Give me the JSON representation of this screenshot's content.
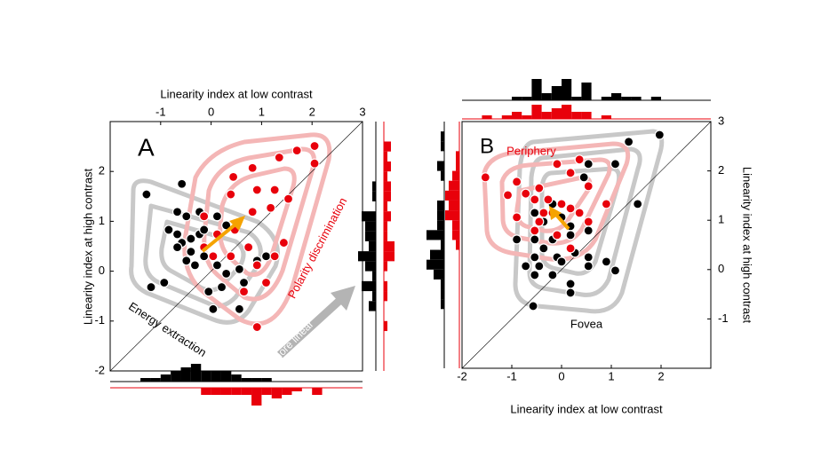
{
  "chart_data": [
    {
      "type": "scatter",
      "panel": "A",
      "x_label": "Linearity index at low contrast",
      "y_label": "Linearity index at high contrast",
      "xlim": [
        -2,
        3
      ],
      "ylim": [
        -2,
        3
      ],
      "xticks": [
        -1,
        0,
        1,
        2,
        3
      ],
      "yticks": [
        -2,
        -1,
        0,
        1,
        2
      ],
      "annotations": [
        "Energy extraction",
        "Polarity discrimination",
        "more linear"
      ],
      "series": [
        {
          "color": "#000000",
          "x": [
            -0.58,
            -1.28,
            -0.67,
            -0.49,
            -0.23,
            0.12,
            -0.84,
            -0.67,
            -0.4,
            -0.23,
            -0.58,
            -0.67,
            -0.4,
            -0.14,
            -0.49,
            -0.32,
            0.12,
            0.3,
            0.56,
            0.91,
            1.09,
            -0.93,
            -0.05,
            0.21,
            0.65,
            -1.19,
            0.04,
            0.56,
            -0.14,
            0.3
          ],
          "values": [
            1.75,
            1.54,
            1.19,
            1.1,
            1.19,
            1.1,
            0.83,
            0.74,
            0.65,
            0.74,
            0.57,
            0.48,
            0.39,
            0.3,
            0.21,
            0.12,
            0.12,
            -0.05,
            0.04,
            0.21,
            0.3,
            -0.23,
            -0.41,
            -0.32,
            -0.23,
            -0.32,
            -0.76,
            -0.76,
            0.83,
            0.92
          ]
        },
        {
          "color": "#e8000b",
          "x": [
            0.44,
            0.82,
            1.35,
            1.7,
            2.05,
            0.91,
            1.26,
            0.39,
            0.82,
            1.18,
            1.53,
            -0.14,
            0.12,
            0.47,
            0.74,
            -0.14,
            0.04,
            0.39,
            0.91,
            1.26,
            1.44,
            0.65,
            1.09,
            0.91,
            2.05
          ],
          "values": [
            1.89,
            2.07,
            2.28,
            2.42,
            2.51,
            1.63,
            1.63,
            1.54,
            1.19,
            1.27,
            1.45,
            1.1,
            0.74,
            0.83,
            0.48,
            0.48,
            0.3,
            0.3,
            0.12,
            0.3,
            0.57,
            -0.41,
            -0.23,
            -1.12,
            2.16
          ]
        }
      ]
    },
    {
      "type": "scatter",
      "panel": "B",
      "x_label": "Linearity index at low contrast",
      "y_label": "Linearity index at high contrast",
      "xlim": [
        -2,
        3
      ],
      "ylim": [
        -2,
        3
      ],
      "xticks": [
        -2,
        -1,
        0,
        1,
        2
      ],
      "yticks": [
        -1,
        0,
        1,
        2,
        3
      ],
      "annotations": [
        "Periphery",
        "Fovea"
      ],
      "series": [
        {
          "color": "#000000",
          "x": [
            1.97,
            1.35,
            0.54,
            0.45,
            1.08,
            -0.18,
            -0.54,
            -0.36,
            0,
            0.18,
            -0.54,
            -0.18,
            0.18,
            -0.36,
            -0.09,
            0.27,
            -0.54,
            -0.72,
            -0.45,
            0,
            0.54,
            0.9,
            -0.54,
            -0.18,
            0.18,
            0.54,
            1.08,
            1.53,
            -0.57,
            0.18,
            -0.9,
            0.54
          ],
          "values": [
            2.73,
            2.59,
            2.14,
            1.87,
            2.14,
            1.33,
            1.15,
            0.97,
            1.06,
            0.88,
            0.61,
            0.61,
            0.7,
            0.43,
            0.25,
            0.34,
            0.25,
            0.07,
            0.07,
            0.16,
            0.25,
            0.16,
            -0.11,
            -0.11,
            -0.29,
            0.07,
            -0.02,
            1.33,
            -0.74,
            -0.47,
            0.61,
            0.79
          ]
        },
        {
          "color": "#e8000b",
          "x": [
            -1.53,
            -0.9,
            -0.72,
            -0.45,
            -0.09,
            0.36,
            0.54,
            -0.27,
            0,
            -0.54,
            -0.36,
            -0.18,
            0.18,
            -0.45,
            0.36,
            0.54,
            -0.9,
            -0.54,
            0.18,
            -0.09,
            -1.08,
            0.18,
            0.9
          ],
          "values": [
            1.87,
            1.78,
            1.54,
            1.65,
            2.14,
            2.23,
            1.69,
            1.42,
            1.33,
            1.42,
            1.15,
            1.15,
            1.24,
            0.97,
            1.15,
            0.97,
            1.06,
            0.79,
            0.43,
            0.7,
            1.51,
            1.96,
            1.33
          ]
        }
      ]
    }
  ]
}
